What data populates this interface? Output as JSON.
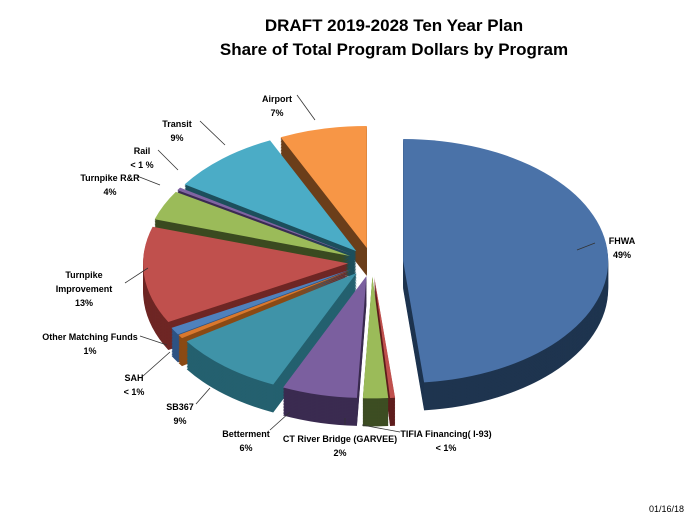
{
  "chart_data": {
    "type": "pie",
    "style": "3d-exploded",
    "title": [
      "DRAFT 2019-2028 Ten Year Plan",
      "Share of Total Program Dollars by Program"
    ],
    "slices": [
      {
        "name": "FHWA",
        "label": "49%",
        "value": 49,
        "color": "#4a72a8",
        "dark": "#1e344f"
      },
      {
        "name": "TIFIA Financing( I-93)",
        "label": "< 1%",
        "value": 0.4,
        "color": "#c0504d",
        "dark": "#5e1d1c"
      },
      {
        "name": "CT River Bridge (GARVEE)",
        "label": "2%",
        "value": 2,
        "color": "#9bbb59",
        "dark": "#3d4d22"
      },
      {
        "name": "Betterment",
        "label": "6%",
        "value": 6,
        "color": "#7b5f9f",
        "dark": "#3a2b50"
      },
      {
        "name": "SB367",
        "label": "9%",
        "value": 9,
        "color": "#3f93a8",
        "dark": "#24606f"
      },
      {
        "name": "SAH",
        "label": "< 1%",
        "value": 0.5,
        "color": "#d9782d",
        "dark": "#8a4a14"
      },
      {
        "name": "Other  Matching Funds",
        "label": "1%",
        "value": 1,
        "color": "#4f81bd",
        "dark": "#2d5283"
      },
      {
        "name": "Turnpike Improvement",
        "label": "13%",
        "value": 13,
        "color": "#c0504d",
        "dark": "#6e2624"
      },
      {
        "name": "Turnpike R&R",
        "label": "4%",
        "value": 4,
        "color": "#9bbb59",
        "dark": "#3a4a20"
      },
      {
        "name": "Rail",
        "label": "< 1 %",
        "value": 0.4,
        "color": "#8064a2",
        "dark": "#3b2b52"
      },
      {
        "name": "Transit",
        "label": "9%",
        "value": 9,
        "color": "#4bacc6",
        "dark": "#1d4f5c"
      },
      {
        "name": "Airport",
        "label": "7%",
        "value": 7,
        "color": "#f79646",
        "dark": "#6b3e1a"
      }
    ]
  },
  "date": "01/16/18"
}
